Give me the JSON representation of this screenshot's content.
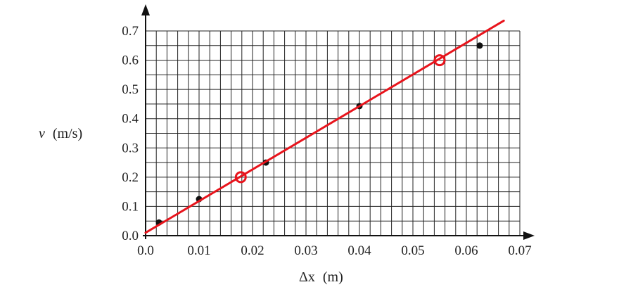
{
  "chart_data": {
    "type": "scatter",
    "title": "",
    "xlabel": {
      "symbol": "Δx",
      "unit": "(m)"
    },
    "ylabel": {
      "symbol": "v",
      "unit": "(m/s)"
    },
    "xlim": [
      0,
      0.07
    ],
    "ylim": [
      0,
      0.7
    ],
    "x_ticks": [
      "0.0",
      "0.01",
      "0.02",
      "0.03",
      "0.04",
      "0.05",
      "0.06",
      "0.07"
    ],
    "y_ticks": [
      "0.0",
      "0.1",
      "0.2",
      "0.3",
      "0.4",
      "0.5",
      "0.6",
      "0.7"
    ],
    "grid": true,
    "series": [
      {
        "kind": "points",
        "x": [
          0.0025,
          0.01,
          0.0225,
          0.04,
          0.0625
        ],
        "y": [
          0.045,
          0.125,
          0.25,
          0.443,
          0.65
        ]
      },
      {
        "kind": "fit-line",
        "x": [
          0.0,
          0.067
        ],
        "y": [
          0.01,
          0.735
        ]
      },
      {
        "kind": "selected-points",
        "x": [
          0.0178,
          0.055
        ],
        "y": [
          0.2,
          0.6
        ]
      }
    ],
    "colors": {
      "points": "#111111",
      "fit_line": "#e8141c",
      "selected_points": "#e8141c",
      "grid": "#222222",
      "axis": "#111111"
    }
  }
}
